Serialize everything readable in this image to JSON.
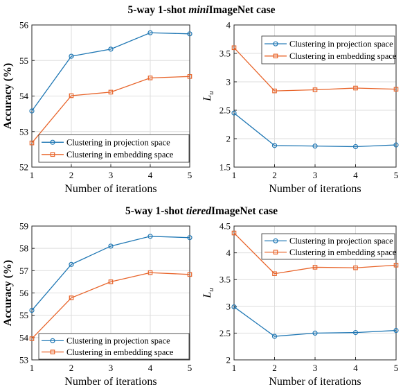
{
  "colors": {
    "projection": "#1f77b4",
    "embedding": "#e8642a"
  },
  "sections": [
    {
      "title_prefix": "5-way 1-shot ",
      "title_italic": "mini",
      "title_suffix": "ImageNet case"
    },
    {
      "title_prefix": "5-way 1-shot ",
      "title_italic": "tiered",
      "title_suffix": "ImageNet case"
    }
  ],
  "chart_data": [
    {
      "type": "line",
      "x": [
        1,
        2,
        3,
        4,
        5
      ],
      "xlabel": "Number of iterations",
      "ylabel": "Accuracy (%)",
      "xlim": [
        1,
        5
      ],
      "ylim": [
        52,
        56
      ],
      "yticks": [
        52,
        53,
        54,
        55,
        56
      ],
      "grid": true,
      "legend": "bottom-right",
      "series": [
        {
          "name": "Clustering in projection space",
          "values": [
            53.58,
            55.12,
            55.32,
            55.78,
            55.75
          ]
        },
        {
          "name": "Clustering in embedding space",
          "values": [
            52.68,
            54.01,
            54.11,
            54.51,
            54.55
          ]
        }
      ]
    },
    {
      "type": "line",
      "x": [
        1,
        2,
        3,
        4,
        5
      ],
      "xlabel": "Number of iterations",
      "ylabel": "L",
      "ylabel_sub": "u",
      "xlim": [
        1,
        5
      ],
      "ylim": [
        1.5,
        4
      ],
      "yticks": [
        1.5,
        2,
        2.5,
        3,
        3.5,
        4
      ],
      "grid": true,
      "legend": "top-right",
      "series": [
        {
          "name": "Clustering in projection space",
          "values": [
            2.45,
            1.88,
            1.87,
            1.86,
            1.89
          ]
        },
        {
          "name": "Clustering in embedding space",
          "values": [
            3.6,
            2.84,
            2.86,
            2.89,
            2.87
          ]
        }
      ]
    },
    {
      "type": "line",
      "x": [
        1,
        2,
        3,
        4,
        5
      ],
      "xlabel": "Number of iterations",
      "ylabel": "Accuracy (%)",
      "xlim": [
        1,
        5
      ],
      "ylim": [
        53,
        59
      ],
      "yticks": [
        53,
        54,
        55,
        56,
        57,
        58,
        59
      ],
      "grid": true,
      "legend": "bottom-right",
      "series": [
        {
          "name": "Clustering in projection space",
          "values": [
            55.22,
            57.28,
            58.1,
            58.54,
            58.48
          ]
        },
        {
          "name": "Clustering in embedding space",
          "values": [
            53.95,
            55.78,
            56.5,
            56.91,
            56.83
          ]
        }
      ]
    },
    {
      "type": "line",
      "x": [
        1,
        2,
        3,
        4,
        5
      ],
      "xlabel": "Number of iterations",
      "ylabel": "L",
      "ylabel_sub": "u",
      "xlim": [
        1,
        5
      ],
      "ylim": [
        2,
        4.5
      ],
      "yticks": [
        2,
        2.5,
        3,
        3.5,
        4,
        4.5
      ],
      "grid": true,
      "legend": "top-right",
      "series": [
        {
          "name": "Clustering in projection space",
          "values": [
            2.99,
            2.44,
            2.5,
            2.51,
            2.55
          ]
        },
        {
          "name": "Clustering in embedding space",
          "values": [
            4.37,
            3.61,
            3.73,
            3.72,
            3.77
          ]
        }
      ]
    }
  ]
}
